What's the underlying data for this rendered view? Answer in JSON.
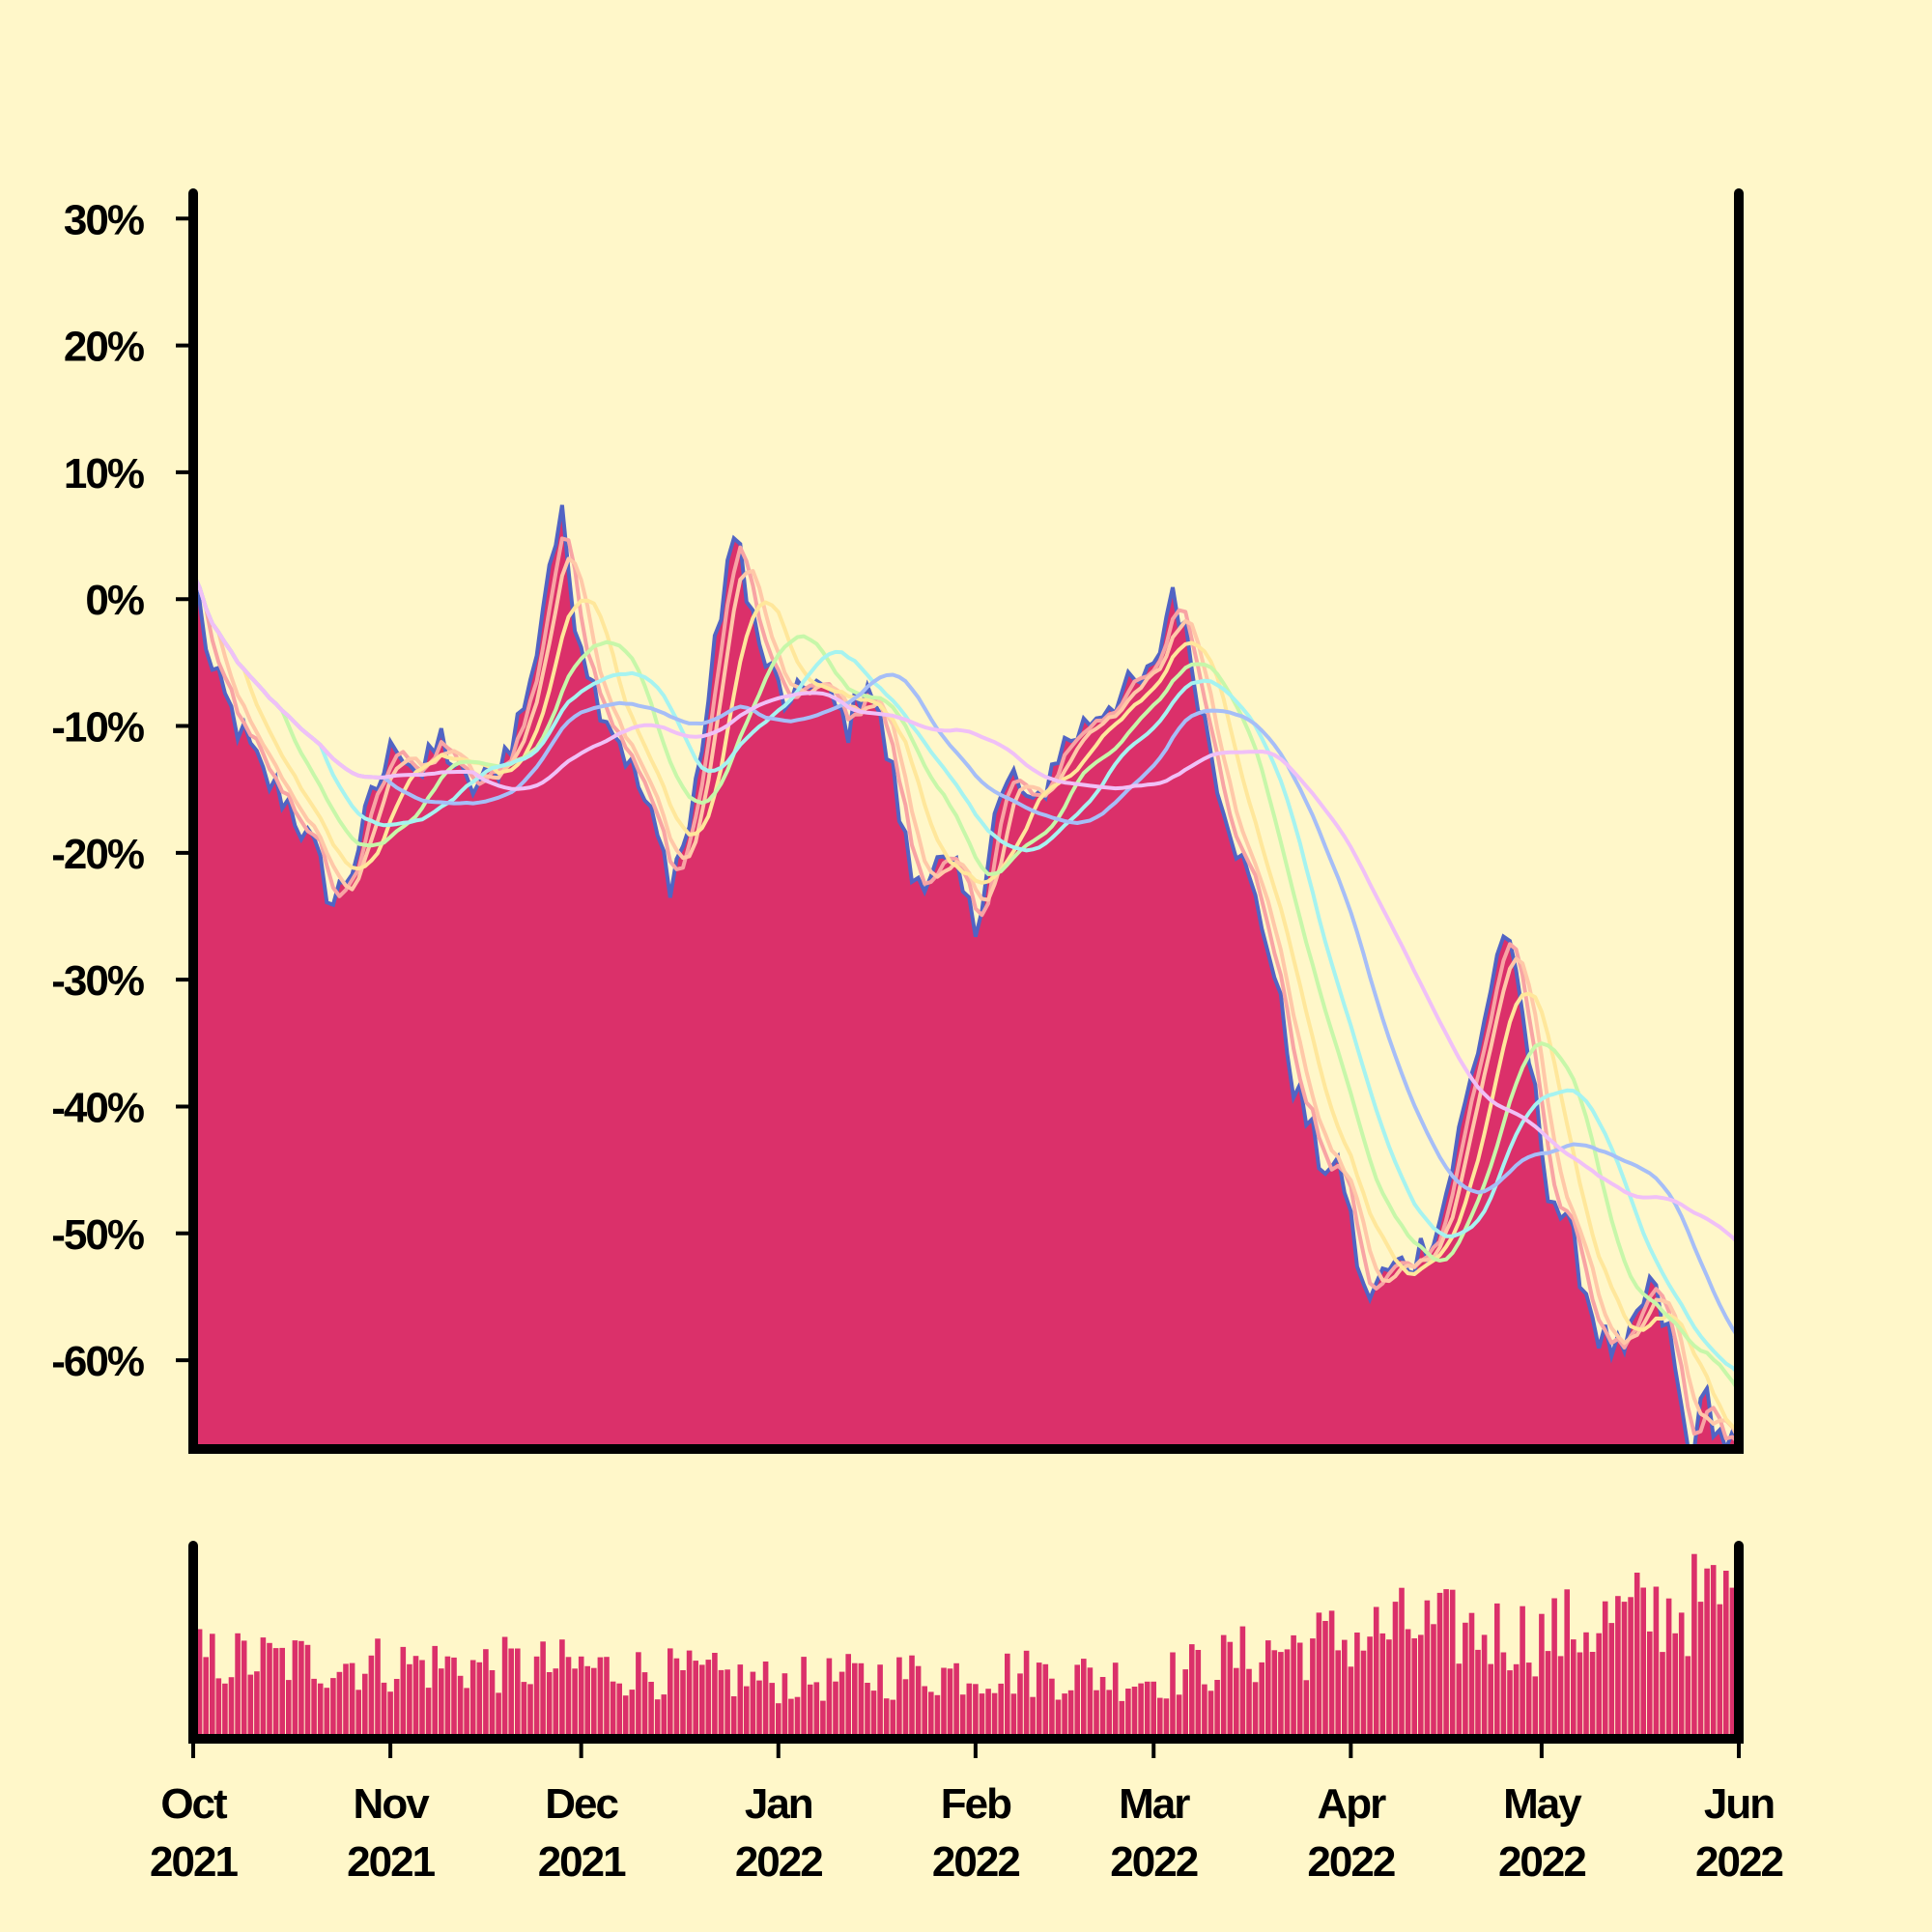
{
  "chart_data": {
    "type": "area",
    "colors": {
      "background": "#fff7c9",
      "area_fill": "#db306a",
      "raw_line": "#5164c4",
      "volume_bars": "#db306a",
      "axis": "#000000"
    },
    "y_axis": {
      "ticks": [
        30,
        20,
        10,
        0,
        -10,
        -20,
        -30,
        -40,
        -50,
        -60
      ],
      "tick_labels": [
        "30%",
        "20%",
        "10%",
        "0%",
        "-10%",
        "-20%",
        "-30%",
        "-40%",
        "-50%",
        "-60%"
      ],
      "ylim": [
        -67,
        32
      ]
    },
    "x_axis": {
      "ticks": [
        "2021-10-01",
        "2021-11-01",
        "2021-12-01",
        "2022-01-01",
        "2022-02-01",
        "2022-03-01",
        "2022-04-01",
        "2022-05-01",
        "2022-06-01"
      ],
      "tick_labels_month": [
        "Oct",
        "Nov",
        "Dec",
        "Jan",
        "Feb",
        "Mar",
        "Apr",
        "May",
        "Jun"
      ],
      "tick_labels_year": [
        "2021",
        "2021",
        "2021",
        "2022",
        "2022",
        "2022",
        "2022",
        "2022",
        "2022"
      ],
      "xlim": [
        "2021-10-01",
        "2022-06-01"
      ]
    },
    "price_series": {
      "name": "",
      "key_points": [
        [
          "2021-10-01",
          2
        ],
        [
          "2021-10-04",
          -6
        ],
        [
          "2021-10-08",
          -10
        ],
        [
          "2021-10-12",
          -14
        ],
        [
          "2021-10-16",
          -16
        ],
        [
          "2021-10-20",
          -20
        ],
        [
          "2021-10-23",
          -24
        ],
        [
          "2021-10-26",
          -21
        ],
        [
          "2021-10-29",
          -16
        ],
        [
          "2021-11-02",
          -11
        ],
        [
          "2021-11-06",
          -14
        ],
        [
          "2021-11-09",
          -11
        ],
        [
          "2021-11-13",
          -15
        ],
        [
          "2021-11-17",
          -14
        ],
        [
          "2021-11-20",
          -11
        ],
        [
          "2021-11-23",
          -7
        ],
        [
          "2021-11-26",
          3
        ],
        [
          "2021-11-28",
          6
        ],
        [
          "2021-11-30",
          -1
        ],
        [
          "2021-12-03",
          -7
        ],
        [
          "2021-12-07",
          -11
        ],
        [
          "2021-12-11",
          -16
        ],
        [
          "2021-12-15",
          -22
        ],
        [
          "2021-12-18",
          -18
        ],
        [
          "2021-12-21",
          -8
        ],
        [
          "2021-12-24",
          3
        ],
        [
          "2021-12-26",
          4
        ],
        [
          "2021-12-29",
          -4
        ],
        [
          "2022-01-03",
          -9
        ],
        [
          "2022-01-06",
          -6
        ],
        [
          "2022-01-09",
          -8
        ],
        [
          "2022-01-12",
          -10
        ],
        [
          "2022-01-15",
          -6
        ],
        [
          "2022-01-19",
          -14
        ],
        [
          "2022-01-22",
          -22
        ],
        [
          "2022-01-26",
          -21
        ],
        [
          "2022-01-29",
          -22
        ],
        [
          "2022-02-01",
          -26
        ],
        [
          "2022-02-04",
          -17
        ],
        [
          "2022-02-07",
          -14
        ],
        [
          "2022-02-10",
          -17
        ],
        [
          "2022-02-14",
          -12
        ],
        [
          "2022-02-18",
          -10
        ],
        [
          "2022-02-22",
          -8
        ],
        [
          "2022-02-26",
          -7
        ],
        [
          "2022-03-01",
          -6
        ],
        [
          "2022-03-04",
          1
        ],
        [
          "2022-03-07",
          -5
        ],
        [
          "2022-03-11",
          -14
        ],
        [
          "2022-03-15",
          -21
        ],
        [
          "2022-03-19",
          -27
        ],
        [
          "2022-03-23",
          -38
        ],
        [
          "2022-03-27",
          -44
        ],
        [
          "2022-03-31",
          -46
        ],
        [
          "2022-04-03",
          -55
        ],
        [
          "2022-04-07",
          -53
        ],
        [
          "2022-04-11",
          -52
        ],
        [
          "2022-04-15",
          -49
        ],
        [
          "2022-04-19",
          -40
        ],
        [
          "2022-04-22",
          -33
        ],
        [
          "2022-04-25",
          -26
        ],
        [
          "2022-04-28",
          -33
        ],
        [
          "2022-05-02",
          -46
        ],
        [
          "2022-05-06",
          -51
        ],
        [
          "2022-05-10",
          -58
        ],
        [
          "2022-05-14",
          -60
        ],
        [
          "2022-05-18",
          -54
        ],
        [
          "2022-05-21",
          -58
        ],
        [
          "2022-05-24",
          -67
        ],
        [
          "2022-05-27",
          -63
        ],
        [
          "2022-05-29",
          -66
        ],
        [
          "2022-06-01",
          -67
        ]
      ]
    },
    "moving_averages": [
      {
        "color": "#f8a4a4",
        "window": 3
      },
      {
        "color": "#ffc8a8",
        "window": 5
      },
      {
        "color": "#ffe79b",
        "window": 9
      },
      {
        "color": "#c7f7a9",
        "window": 15
      },
      {
        "color": "#a6f3f0",
        "window": 21
      },
      {
        "color": "#a6bef7",
        "window": 31
      },
      {
        "color": "#f0c0f7",
        "window": 45
      }
    ],
    "volume": {
      "color": "#db306a",
      "trend_points": [
        [
          "2021-10-01",
          0.45
        ],
        [
          "2021-11-01",
          0.42
        ],
        [
          "2021-12-01",
          0.4
        ],
        [
          "2022-01-01",
          0.32
        ],
        [
          "2022-02-01",
          0.38
        ],
        [
          "2022-03-01",
          0.34
        ],
        [
          "2022-03-20",
          0.5
        ],
        [
          "2022-04-10",
          0.62
        ],
        [
          "2022-05-01",
          0.58
        ],
        [
          "2022-05-20",
          0.72
        ],
        [
          "2022-06-01",
          0.8
        ]
      ]
    }
  }
}
